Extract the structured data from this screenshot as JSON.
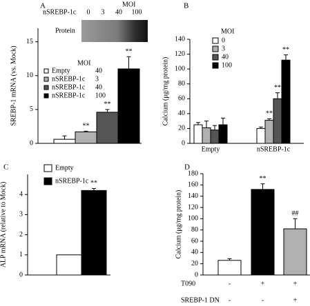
{
  "chart_data": [
    {
      "type": "bar",
      "panel": "A",
      "ylabel": "SREBP-1 mRNA (vs. Mock)",
      "values": [
        0.6,
        1.7,
        4.6,
        11
      ],
      "errors": [
        0.5,
        0.1,
        0.4,
        1.8
      ],
      "colors": [
        "#ffffff",
        "#b0b0b0",
        "#555555",
        "#000000"
      ],
      "ylim": [
        0,
        17
      ],
      "yticks": [
        0,
        5,
        10,
        15
      ],
      "legend_title": "MOI",
      "legend": [
        {
          "name": "Empty",
          "moi": 40
        },
        {
          "name": "nSREBP-1c",
          "moi": 3
        },
        {
          "name": "nSREBP-1c",
          "moi": 40
        },
        {
          "name": "nSREBP-1c",
          "moi": 100
        }
      ],
      "annotations": [
        {
          "index": 1,
          "text": "**"
        },
        {
          "index": 2,
          "text": "**"
        },
        {
          "index": 3,
          "text": "**"
        }
      ],
      "inset": {
        "title": "Protein",
        "label": "nSREBP-1c",
        "moi_title": "MOI",
        "moi": [
          0,
          3,
          40,
          100
        ]
      }
    },
    {
      "type": "grouped_bar",
      "panel": "B",
      "ylabel": "Calcium (μg/mg protein)",
      "categories": [
        "Empty",
        "nSREBP-1c"
      ],
      "legend_title": "MOI",
      "series": [
        {
          "name": "0",
          "color": "#ffffff",
          "values": [
            25,
            20
          ],
          "errors": [
            3,
            2
          ]
        },
        {
          "name": "3",
          "color": "#b0b0b0",
          "values": [
            21,
            31
          ],
          "errors": [
            9,
            2
          ]
        },
        {
          "name": "40",
          "color": "#555555",
          "values": [
            18,
            60
          ],
          "errors": [
            6,
            8
          ]
        },
        {
          "name": "100",
          "color": "#000000",
          "values": [
            25,
            112
          ],
          "errors": [
            9,
            7
          ]
        }
      ],
      "ylim": [
        0,
        140
      ],
      "yticks": [
        0,
        20,
        40,
        60,
        80,
        100,
        120,
        140
      ],
      "annotations": [
        {
          "series": 1,
          "index": 1,
          "text": "**"
        },
        {
          "series": 2,
          "index": 1,
          "text": "**"
        },
        {
          "series": 3,
          "index": 1,
          "text": "**"
        }
      ]
    },
    {
      "type": "bar",
      "panel": "C",
      "ylabel": "ALP mRNA (relative to Mock)",
      "values": [
        1,
        4.2
      ],
      "errors": [
        0,
        0.1
      ],
      "colors": [
        "#ffffff",
        "#000000"
      ],
      "ylim": [
        0,
        5
      ],
      "yticks": [
        0,
        1,
        2,
        3,
        4
      ],
      "legend": [
        {
          "name": "Empty"
        },
        {
          "name": "nSREBP-1c"
        }
      ],
      "annotations": [
        {
          "index": 1,
          "text": "**"
        }
      ]
    },
    {
      "type": "bar",
      "panel": "D",
      "ylabel": "Calcium (μg/mg protein)",
      "values": [
        26,
        152,
        82
      ],
      "errors": [
        3,
        10,
        18
      ],
      "colors": [
        "#ffffff",
        "#000000",
        "#b0b0b0"
      ],
      "ylim": [
        0,
        180
      ],
      "yticks": [
        0,
        20,
        40,
        60,
        80,
        100,
        120,
        140,
        160,
        180
      ],
      "annotations": [
        {
          "index": 1,
          "text": "**"
        },
        {
          "index": 2,
          "text": "##"
        }
      ],
      "conditions": [
        {
          "label": "T090",
          "marks": [
            "-",
            "+",
            "+"
          ]
        },
        {
          "label": "SREBP-1 DN",
          "marks": [
            "-",
            "-",
            "+"
          ]
        }
      ]
    }
  ]
}
